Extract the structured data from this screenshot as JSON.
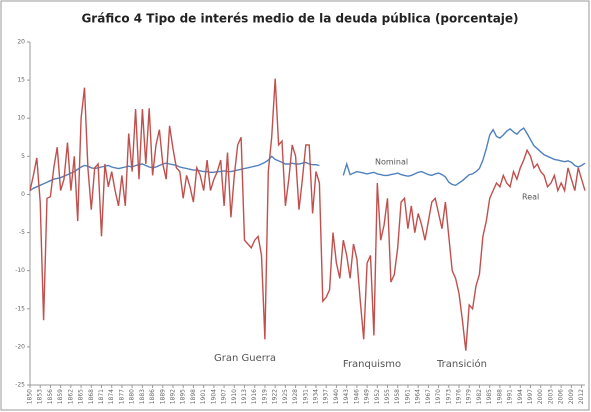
{
  "chart_data": {
    "type": "line",
    "title": "Gráfico 4 Tipo de interés medio de la deuda pública (porcentaje)",
    "annotations": [
      "Gran Guerra",
      "Franquismo",
      "Transición"
    ],
    "x": [
      1850,
      1851,
      1852,
      1853,
      1854,
      1855,
      1856,
      1857,
      1858,
      1859,
      1860,
      1861,
      1862,
      1863,
      1864,
      1865,
      1866,
      1867,
      1868,
      1869,
      1870,
      1871,
      1872,
      1873,
      1874,
      1875,
      1876,
      1877,
      1878,
      1879,
      1880,
      1881,
      1882,
      1883,
      1884,
      1885,
      1886,
      1887,
      1888,
      1889,
      1890,
      1891,
      1892,
      1893,
      1894,
      1895,
      1896,
      1897,
      1898,
      1899,
      1900,
      1901,
      1902,
      1903,
      1904,
      1905,
      1906,
      1907,
      1908,
      1909,
      1910,
      1911,
      1912,
      1913,
      1914,
      1915,
      1916,
      1917,
      1918,
      1919,
      1920,
      1921,
      1922,
      1923,
      1924,
      1925,
      1926,
      1927,
      1928,
      1929,
      1930,
      1931,
      1932,
      1933,
      1934,
      1935,
      1936,
      1937,
      1938,
      1939,
      1940,
      1941,
      1942,
      1943,
      1944,
      1945,
      1946,
      1947,
      1948,
      1949,
      1950,
      1951,
      1952,
      1953,
      1954,
      1955,
      1956,
      1957,
      1958,
      1959,
      1960,
      1961,
      1962,
      1963,
      1964,
      1965,
      1966,
      1967,
      1968,
      1969,
      1970,
      1971,
      1972,
      1973,
      1974,
      1975,
      1976,
      1977,
      1978,
      1979,
      1980,
      1981,
      1982,
      1983,
      1984,
      1985,
      1986,
      1987,
      1988,
      1989,
      1990,
      1991,
      1992,
      1993,
      1994,
      1995,
      1996,
      1997,
      1998,
      1999,
      2000,
      2001,
      2002,
      2003,
      2004,
      2005,
      2006,
      2007,
      2008,
      2009,
      2010,
      2011,
      2012,
      2013
    ],
    "series": [
      {
        "name": "Nominal",
        "color": "#4f81bd",
        "values": [
          0.5,
          0.8,
          1.0,
          1.2,
          1.4,
          1.6,
          1.8,
          2.0,
          2.1,
          2.2,
          2.4,
          2.6,
          2.8,
          3.0,
          3.3,
          3.6,
          3.8,
          3.7,
          3.5,
          3.4,
          3.5,
          3.6,
          3.7,
          3.8,
          3.6,
          3.5,
          3.4,
          3.5,
          3.6,
          3.7,
          3.6,
          3.8,
          3.9,
          4.0,
          3.8,
          3.6,
          3.5,
          3.6,
          3.8,
          4.0,
          4.1,
          4.0,
          3.9,
          3.8,
          3.6,
          3.5,
          3.4,
          3.3,
          3.2,
          3.2,
          3.1,
          3.0,
          3.0,
          2.9,
          2.9,
          3.0,
          3.0,
          3.1,
          3.0,
          3.0,
          3.1,
          3.2,
          3.3,
          3.4,
          3.5,
          3.6,
          3.7,
          3.8,
          4.0,
          4.2,
          4.5,
          5.0,
          4.6,
          4.4,
          4.2,
          4.0,
          4.0,
          4.1,
          4.0,
          4.0,
          4.1,
          4.2,
          4.0,
          3.9,
          3.9,
          3.8,
          null,
          null,
          null,
          null,
          null,
          null,
          2.5,
          4.0,
          2.6,
          2.8,
          3.0,
          2.9,
          2.8,
          2.7,
          2.8,
          2.9,
          2.7,
          2.6,
          2.5,
          2.5,
          2.6,
          2.7,
          2.8,
          2.6,
          2.5,
          2.4,
          2.5,
          2.7,
          2.9,
          3.0,
          2.8,
          2.6,
          2.5,
          2.7,
          2.8,
          2.6,
          2.3,
          1.6,
          1.3,
          1.2,
          1.5,
          1.8,
          2.2,
          2.6,
          2.7,
          3.0,
          3.4,
          4.5,
          6.0,
          7.8,
          8.5,
          7.6,
          7.4,
          7.8,
          8.3,
          8.6,
          8.2,
          7.9,
          8.4,
          8.7,
          8.0,
          7.2,
          6.4,
          6.0,
          5.6,
          5.2,
          5.0,
          4.8,
          4.6,
          4.5,
          4.4,
          4.3,
          4.4,
          4.2,
          3.8,
          3.6,
          3.8,
          4.1
        ]
      },
      {
        "name": "Real",
        "color": "#c0504d",
        "values": [
          0.5,
          2.5,
          4.8,
          -1.0,
          -16.5,
          -0.5,
          -0.3,
          3.5,
          6.2,
          0.5,
          2.0,
          6.8,
          0.5,
          5.0,
          -3.5,
          10.0,
          14.0,
          3.5,
          -2.0,
          3.5,
          4.0,
          -5.5,
          4.0,
          1.0,
          3.0,
          0.5,
          -1.5,
          2.5,
          -1.5,
          8.0,
          3.0,
          11.2,
          2.0,
          11.2,
          4.0,
          11.3,
          2.5,
          6.5,
          8.5,
          4.0,
          2.0,
          9.0,
          6.0,
          3.5,
          3.0,
          -0.5,
          2.5,
          1.0,
          -1.0,
          3.5,
          2.5,
          0.5,
          4.5,
          0.5,
          2.0,
          3.0,
          4.5,
          -1.5,
          5.5,
          -3.0,
          2.5,
          6.5,
          7.5,
          -6.0,
          -6.5,
          -7.0,
          -6.0,
          -5.5,
          -8.0,
          -19.0,
          3.0,
          7.5,
          15.2,
          6.5,
          7.0,
          -1.5,
          2.0,
          6.5,
          5.0,
          -2.0,
          2.0,
          6.5,
          6.5,
          -2.5,
          3.0,
          1.5,
          -14.0,
          -13.5,
          -12.5,
          -5.0,
          -9.0,
          -11.0,
          -6.0,
          -8.0,
          -11.0,
          -6.5,
          -8.5,
          -14.0,
          -19.0,
          -9.0,
          -8.0,
          -18.5,
          1.5,
          -6.0,
          -4.0,
          -0.5,
          -11.5,
          -10.5,
          -7.0,
          -1.0,
          -0.5,
          -4.5,
          -1.5,
          -5.0,
          -2.5,
          -4.0,
          -6.0,
          -3.5,
          -1.0,
          -0.5,
          -2.5,
          -4.5,
          -1.0,
          -5.5,
          -10.0,
          -11.0,
          -13.0,
          -16.5,
          -20.5,
          -14.5,
          -15.0,
          -12.0,
          -10.5,
          -5.5,
          -3.5,
          -0.5,
          0.5,
          1.5,
          1.0,
          2.5,
          1.5,
          1.0,
          3.0,
          2.0,
          3.5,
          4.5,
          5.8,
          5.0,
          3.5,
          4.0,
          3.0,
          2.5,
          1.0,
          1.5,
          2.5,
          0.5,
          1.5,
          0.5,
          3.5,
          2.0,
          0.5,
          3.5,
          2.0,
          0.5
        ]
      }
    ],
    "xlim": [
      1850,
      2013
    ],
    "xticks": [
      1850,
      1853,
      1856,
      1859,
      1862,
      1865,
      1868,
      1871,
      1874,
      1877,
      1880,
      1883,
      1886,
      1889,
      1892,
      1895,
      1898,
      1901,
      1904,
      1907,
      1910,
      1913,
      1916,
      1919,
      1922,
      1925,
      1928,
      1931,
      1934,
      1937,
      1940,
      1943,
      1946,
      1949,
      1952,
      1955,
      1958,
      1961,
      1964,
      1967,
      1970,
      1973,
      1976,
      1979,
      1982,
      1985,
      1988,
      1991,
      1994,
      1997,
      2000,
      2003,
      2006,
      2009,
      2012
    ],
    "ylim": [
      -25,
      20
    ],
    "yticks": [
      -25,
      -20,
      -15,
      -10,
      -5,
      0,
      5,
      10,
      15,
      20
    ],
    "grid": false
  }
}
